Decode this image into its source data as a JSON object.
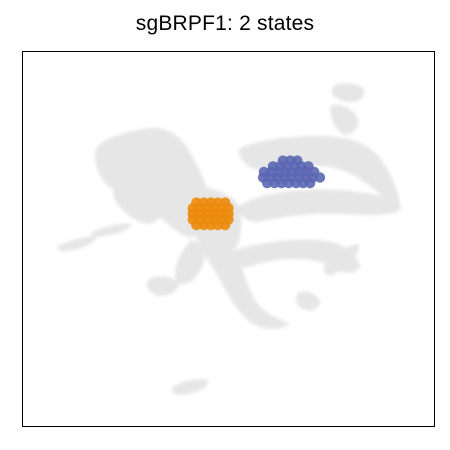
{
  "title": "sgBRPF1: 2 states",
  "chart_data": {
    "type": "scatter",
    "title": "sgBRPF1: 2 states",
    "xlabel": "",
    "ylabel": "",
    "xlim": [
      0,
      100
    ],
    "ylim": [
      0,
      100
    ],
    "grid": false,
    "legend": "none",
    "background_color": "#e6e6e6",
    "series": [
      {
        "color": "#ec8a0c",
        "points": [
          [
            42.2,
            59.7
          ],
          [
            44.0,
            59.7
          ],
          [
            45.7,
            59.7
          ],
          [
            47.4,
            59.7
          ],
          [
            49.2,
            59.7
          ],
          [
            41.3,
            58.2
          ],
          [
            43.1,
            58.2
          ],
          [
            44.8,
            58.2
          ],
          [
            46.5,
            58.2
          ],
          [
            48.3,
            58.2
          ],
          [
            50.0,
            58.2
          ],
          [
            41.3,
            56.7
          ],
          [
            43.1,
            56.7
          ],
          [
            44.8,
            56.7
          ],
          [
            46.5,
            56.7
          ],
          [
            48.3,
            56.7
          ],
          [
            50.0,
            56.7
          ],
          [
            41.3,
            55.2
          ],
          [
            43.1,
            55.2
          ],
          [
            44.8,
            55.2
          ],
          [
            46.5,
            55.2
          ],
          [
            48.3,
            55.2
          ],
          [
            50.0,
            55.2
          ],
          [
            42.2,
            53.7
          ],
          [
            44.0,
            53.7
          ],
          [
            45.7,
            53.7
          ],
          [
            47.4,
            53.7
          ],
          [
            49.2,
            53.7
          ]
        ]
      },
      {
        "color": "#5c67b4",
        "points": [
          [
            63.2,
            70.9
          ],
          [
            65.0,
            70.9
          ],
          [
            66.7,
            70.9
          ],
          [
            60.8,
            69.4
          ],
          [
            62.5,
            69.4
          ],
          [
            64.2,
            69.4
          ],
          [
            66.0,
            69.4
          ],
          [
            67.7,
            69.4
          ],
          [
            69.4,
            69.4
          ],
          [
            58.6,
            67.9
          ],
          [
            60.3,
            67.9
          ],
          [
            62.1,
            67.9
          ],
          [
            63.8,
            67.9
          ],
          [
            65.5,
            67.9
          ],
          [
            67.3,
            67.9
          ],
          [
            69.0,
            67.9
          ],
          [
            70.8,
            67.9
          ],
          [
            58.4,
            66.4
          ],
          [
            60.1,
            66.4
          ],
          [
            61.9,
            66.4
          ],
          [
            63.6,
            66.4
          ],
          [
            65.3,
            66.4
          ],
          [
            67.1,
            66.4
          ],
          [
            68.8,
            66.4
          ],
          [
            70.5,
            66.4
          ],
          [
            72.2,
            66.4
          ],
          [
            59.4,
            64.9
          ],
          [
            61.2,
            64.9
          ],
          [
            62.9,
            64.9
          ],
          [
            64.6,
            64.9
          ],
          [
            66.4,
            64.9
          ],
          [
            68.1,
            64.9
          ],
          [
            69.8,
            64.9
          ]
        ]
      }
    ]
  }
}
